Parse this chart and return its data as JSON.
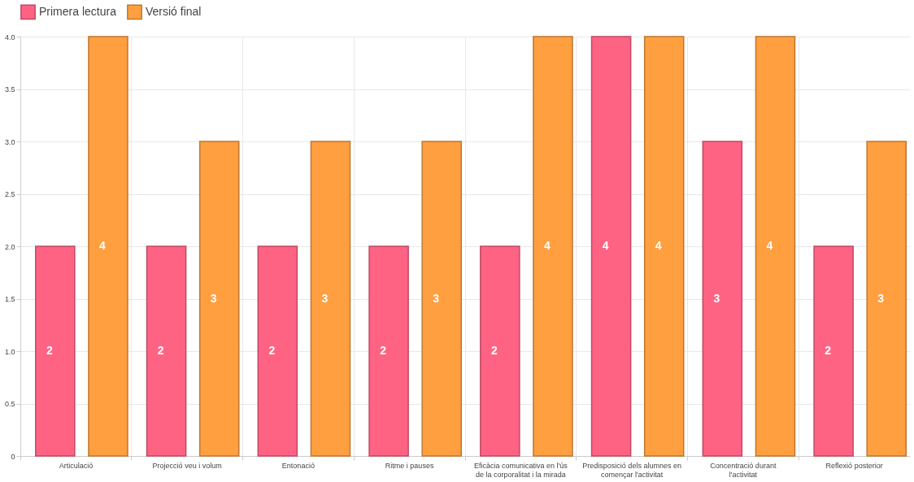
{
  "chart_data": {
    "type": "bar",
    "categories": [
      "Articulació",
      "Projecció veu i volum",
      "Entonació",
      "Ritme i pauses",
      "Eficàcia comunicativa en l'ús de la corporalitat i la mirada",
      "Predisposició dels alumnes en començar l'activitat",
      "Concentració durant l'activitat",
      "Reflexió posterior"
    ],
    "series": [
      {
        "name": "Primera lectura",
        "color": "#ff6384",
        "values": [
          2,
          2,
          2,
          2,
          2,
          4,
          3,
          2
        ]
      },
      {
        "name": "Versió final",
        "color": "#ff9f40",
        "values": [
          4,
          3,
          3,
          3,
          4,
          4,
          4,
          3
        ]
      }
    ],
    "ylim": [
      0,
      4
    ],
    "yticks": [
      0,
      0.5,
      {
        "value": 1,
        "label": "1.0"
      },
      1.5,
      {
        "value": 2,
        "label": "2.0"
      },
      2.5,
      {
        "value": 3,
        "label": "3.0"
      },
      3.5,
      {
        "value": 4,
        "label": "4.0"
      }
    ],
    "grid": true,
    "legend": "top",
    "data_labels": true
  }
}
